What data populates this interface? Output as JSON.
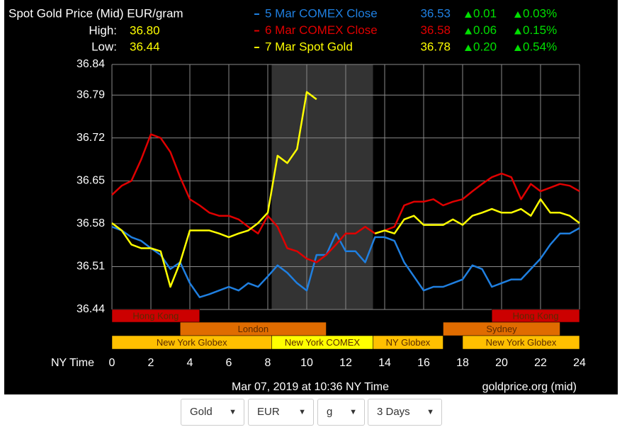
{
  "chart_data": {
    "type": "line",
    "title": "Spot Gold Price (Mid) EUR/gram",
    "high_label": "High:",
    "high": "36.80",
    "low_label": "Low:",
    "low": "36.44",
    "x_label": "NY Time",
    "xlim": [
      0,
      24
    ],
    "xticks": [
      0,
      2,
      4,
      6,
      8,
      10,
      12,
      14,
      16,
      18,
      20,
      22,
      24
    ],
    "ylim": [
      36.44,
      36.84
    ],
    "yticks": [
      36.44,
      36.51,
      36.58,
      36.65,
      36.72,
      36.79,
      36.84
    ],
    "grid": true,
    "highlight": [
      8.2,
      13.4
    ],
    "x": [
      0,
      0.5,
      1,
      1.5,
      2,
      2.5,
      3,
      3.5,
      4,
      4.5,
      5,
      5.5,
      6,
      6.5,
      7,
      7.5,
      8,
      8.5,
      9,
      9.5,
      10,
      10.5,
      11,
      11.5,
      12,
      12.5,
      13,
      13.5,
      14,
      14.5,
      15,
      15.5,
      16,
      16.5,
      17,
      17.5,
      18,
      18.5,
      19,
      19.5,
      20,
      20.5,
      21,
      21.5,
      22,
      22.5,
      23,
      23.5,
      24
    ],
    "series": [
      {
        "name": "5 Mar COMEX Close",
        "color": "#1f7fe0",
        "close": 36.53,
        "change": "0.01",
        "change_pct": "0.03%",
        "values": [
          36.575,
          36.569,
          36.558,
          36.552,
          36.54,
          36.529,
          36.506,
          36.517,
          36.483,
          36.46,
          36.465,
          36.471,
          36.477,
          36.471,
          36.483,
          36.477,
          36.494,
          36.512,
          36.5,
          36.483,
          36.471,
          36.529,
          36.529,
          36.564,
          36.535,
          36.535,
          36.517,
          36.558,
          36.558,
          36.552,
          36.517,
          36.494,
          36.471,
          36.477,
          36.477,
          36.483,
          36.489,
          36.512,
          36.506,
          36.477,
          36.483,
          36.489,
          36.489,
          36.506,
          36.523,
          36.546,
          36.564,
          36.564,
          36.573
        ]
      },
      {
        "name": "6 Mar COMEX Close",
        "color": "#e00000",
        "close": 36.58,
        "change": "0.06",
        "change_pct": "0.15%",
        "values": [
          36.627,
          36.642,
          36.65,
          36.685,
          36.726,
          36.72,
          36.697,
          36.656,
          36.62,
          36.61,
          36.598,
          36.593,
          36.593,
          36.587,
          36.575,
          36.564,
          36.593,
          36.575,
          36.54,
          36.535,
          36.523,
          36.517,
          36.529,
          36.546,
          36.564,
          36.564,
          36.575,
          36.564,
          36.569,
          36.575,
          36.61,
          36.616,
          36.616,
          36.62,
          36.61,
          36.616,
          36.62,
          36.633,
          36.645,
          36.656,
          36.662,
          36.656,
          36.62,
          36.645,
          36.633,
          36.639,
          36.645,
          36.642,
          36.633
        ]
      },
      {
        "name": "7 Mar Spot Gold",
        "color": "#ffff00",
        "close": 36.78,
        "change": "0.20",
        "change_pct": "0.54%",
        "values": [
          36.581,
          36.569,
          36.546,
          36.54,
          36.54,
          36.535,
          36.477,
          36.517,
          36.569,
          36.569,
          36.569,
          36.564,
          36.558,
          36.564,
          36.569,
          36.581,
          36.598,
          36.691,
          36.679,
          36.702,
          36.795,
          36.783,
          null,
          null,
          null,
          null,
          null,
          36.564,
          36.569,
          36.564,
          36.587,
          36.593,
          36.578,
          36.578,
          36.578,
          36.587,
          36.578,
          36.593,
          36.598,
          36.604,
          36.598,
          36.598,
          36.604,
          36.593,
          36.62,
          36.598,
          36.598,
          36.593,
          36.581
        ]
      }
    ],
    "session_rows": [
      [
        {
          "label": "Hong Kong",
          "start": 0,
          "end": 4.5,
          "color": "#cc0000"
        },
        {
          "label": "Hong Kong",
          "start": 19.5,
          "end": 24,
          "color": "#cc0000"
        }
      ],
      [
        {
          "label": "London",
          "start": 3.5,
          "end": 11,
          "color": "#e06c00"
        },
        {
          "label": "Sydney",
          "start": 17,
          "end": 23,
          "color": "#e06c00"
        }
      ],
      [
        {
          "label": "New York Globex",
          "start": 0,
          "end": 8.2,
          "color": "#ffc000"
        },
        {
          "label": "New York COMEX",
          "start": 8.2,
          "end": 13.4,
          "color": "#ffff00"
        },
        {
          "label": "NY Globex",
          "start": 13.4,
          "end": 17,
          "color": "#ffc000"
        },
        {
          "label": "New York Globex",
          "start": 18,
          "end": 24,
          "color": "#ffc000"
        }
      ]
    ],
    "timestamp": "Mar 07, 2019 at 10:36 NY Time",
    "source": "goldprice.org (mid)"
  },
  "controls": [
    "Gold",
    "EUR",
    "g",
    "3 Days"
  ]
}
